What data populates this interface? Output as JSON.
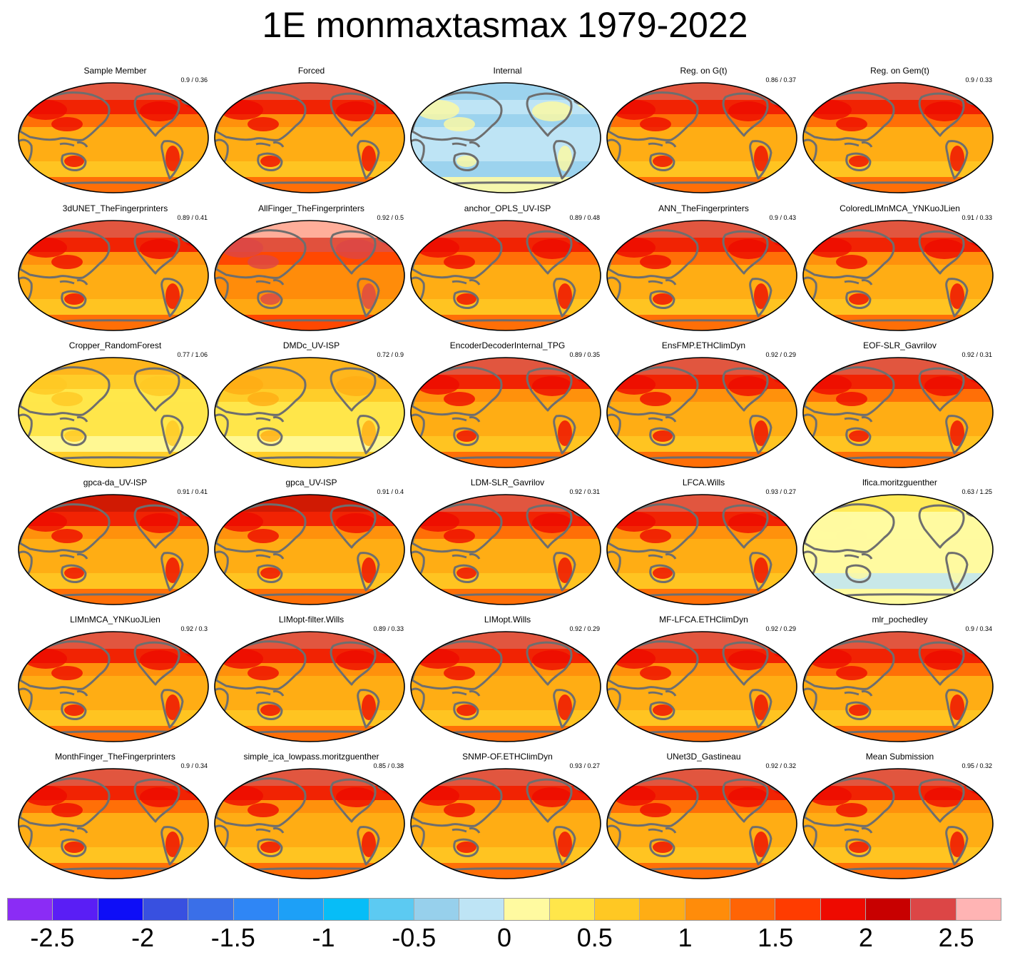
{
  "title": "1E monmaxtasmax 1979-2022",
  "colors": {
    "land_outline": "#6e6e6e",
    "frame": "#000000",
    "levels": [
      "#8b2cf5",
      "#5a1ef5",
      "#0e0ef7",
      "#3850e0",
      "#3a6fe8",
      "#2f86f5",
      "#1da0f7",
      "#07bdf7",
      "#5ccaf2",
      "#97d0ec",
      "#bee4f5",
      "#fffaa0",
      "#ffe64a",
      "#ffc823",
      "#ffad14",
      "#ff8c0a",
      "#ff6405",
      "#ff3c00",
      "#ee0a00",
      "#c80000",
      "#dc4646",
      "#ffb4b4"
    ]
  },
  "colorbar": {
    "levels": 22,
    "ticks": [
      {
        "label": "-2.5",
        "pos": 1
      },
      {
        "label": "-2",
        "pos": 3
      },
      {
        "label": "-1.5",
        "pos": 5
      },
      {
        "label": "-1",
        "pos": 7
      },
      {
        "label": "-0.5",
        "pos": 9
      },
      {
        "label": "0",
        "pos": 11
      },
      {
        "label": "0.5",
        "pos": 13
      },
      {
        "label": "1",
        "pos": 15
      },
      {
        "label": "1.5",
        "pos": 17
      },
      {
        "label": "2",
        "pos": 19
      },
      {
        "label": "2.5",
        "pos": 21
      }
    ]
  },
  "panels": [
    {
      "name": "Sample Member",
      "score": "0.9 / 0.36",
      "intensity": 1.0
    },
    {
      "name": "Forced",
      "score": "",
      "intensity": 0.95
    },
    {
      "name": "Internal",
      "score": "",
      "intensity": -0.3
    },
    {
      "name": "Reg. on G(t)",
      "score": "0.86 / 0.37",
      "intensity": 1.0
    },
    {
      "name": "Reg. on Gem(t)",
      "score": "0.9 / 0.33",
      "intensity": 1.0
    },
    {
      "name": "3dUNET_TheFingerprinters",
      "score": "0.89 / 0.41",
      "intensity": 0.95
    },
    {
      "name": "AllFinger_TheFingerprinters",
      "score": "0.92 / 0.5",
      "intensity": 1.2
    },
    {
      "name": "anchor_OPLS_UV-ISP",
      "score": "0.89 / 0.48",
      "intensity": 1.05
    },
    {
      "name": "ANN_TheFingerprinters",
      "score": "0.9 / 0.43",
      "intensity": 1.05
    },
    {
      "name": "ColoredLIMnMCA_YNKuoJLien",
      "score": "0.91 / 0.33",
      "intensity": 0.95
    },
    {
      "name": "Cropper_RandomForest",
      "score": "0.77 / 1.06",
      "intensity": 0.25
    },
    {
      "name": "DMDc_UV-ISP",
      "score": "0.72 / 0.9",
      "intensity": 0.4
    },
    {
      "name": "EncoderDecoderInternal_TPG",
      "score": "0.89 / 0.35",
      "intensity": 0.95
    },
    {
      "name": "EnsFMP.ETHClimDyn",
      "score": "0.92 / 0.29",
      "intensity": 0.95
    },
    {
      "name": "EOF-SLR_Gavrilov",
      "score": "0.92 / 0.31",
      "intensity": 1.05
    },
    {
      "name": "gpca-da_UV-ISP",
      "score": "0.91 / 0.41",
      "intensity": 0.9
    },
    {
      "name": "gpca_UV-ISP",
      "score": "0.91 / 0.4",
      "intensity": 0.9
    },
    {
      "name": "LDM-SLR_Gavrilov",
      "score": "0.92 / 0.31",
      "intensity": 1.0
    },
    {
      "name": "LFCA.Wills",
      "score": "0.93 / 0.27",
      "intensity": 0.95
    },
    {
      "name": "lfica.moritzguenther",
      "score": "0.63 / 1.25",
      "intensity": 0.1
    },
    {
      "name": "LIMnMCA_YNKuoJLien",
      "score": "0.92 / 0.3",
      "intensity": 0.95
    },
    {
      "name": "LIMopt-filter.Wills",
      "score": "0.89 / 0.33",
      "intensity": 0.95
    },
    {
      "name": "LIMopt.Wills",
      "score": "0.92 / 0.29",
      "intensity": 0.95
    },
    {
      "name": "MF-LFCA.ETHClimDyn",
      "score": "0.92 / 0.29",
      "intensity": 0.95
    },
    {
      "name": "mlr_pochedley",
      "score": "0.9 / 0.34",
      "intensity": 1.0
    },
    {
      "name": "MonthFinger_TheFingerprinters",
      "score": "0.9 / 0.34",
      "intensity": 1.0
    },
    {
      "name": "simple_ica_lowpass.moritzguenther",
      "score": "0.85 / 0.38",
      "intensity": 0.95
    },
    {
      "name": "SNMP-OF.ETHClimDyn",
      "score": "0.93 / 0.27",
      "intensity": 0.95
    },
    {
      "name": "UNet3D_Gastineau",
      "score": "0.92 / 0.32",
      "intensity": 1.05
    },
    {
      "name": "Mean Submission",
      "score": "0.95 / 0.32",
      "intensity": 0.95
    }
  ]
}
